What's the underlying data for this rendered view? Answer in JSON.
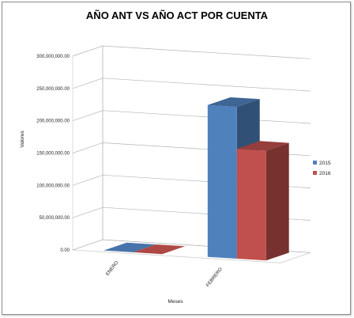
{
  "chart_data": {
    "type": "bar",
    "title": "AÑO ANT VS AÑO ACT POR CUENTA",
    "xlabel": "Meses",
    "ylabel": "Valores",
    "categories": [
      "ENERO",
      "FEBRERO"
    ],
    "series": [
      {
        "name": "2015",
        "values": [
          0,
          235000000
        ],
        "color": "#4f81bd"
      },
      {
        "name": "2016",
        "values": [
          0,
          170000000
        ],
        "color": "#c0504d"
      }
    ],
    "ylim": [
      0,
      300000000
    ],
    "yticks": [
      "0.00",
      "50,000,000.00",
      "100,000,000.00",
      "150,000,000.00",
      "200,000,000.00",
      "250,000,000.00",
      "300,000,000.00"
    ],
    "grid": true,
    "legend_position": "right",
    "view": "3d-clustered-column"
  }
}
